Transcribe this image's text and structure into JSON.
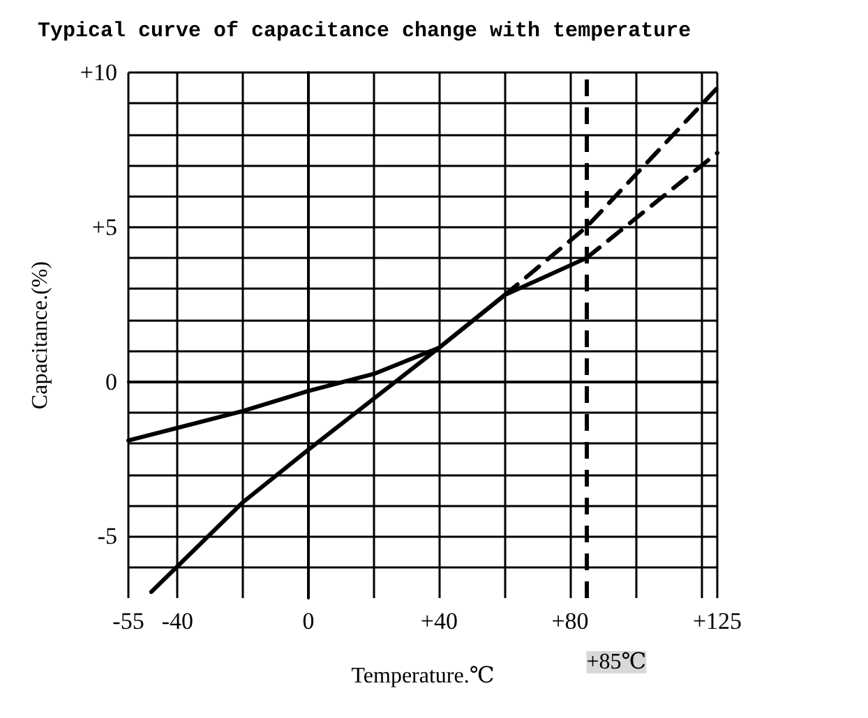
{
  "chart_data": {
    "type": "line",
    "title": "Typical curve of capacitance change with temperature",
    "xlabel": "Temperature.℃",
    "ylabel": "Capacitance.(%)",
    "xlim": [
      -55,
      125
    ],
    "xticks": [
      -55,
      -40,
      {
        "value": -20,
        "label": null
      },
      0,
      {
        "value": 20,
        "label": null
      },
      {
        "value": 40,
        "label": "+40"
      },
      {
        "value": 60,
        "label": null
      },
      {
        "value": 80,
        "label": "+80"
      },
      {
        "value": 100,
        "label": null
      },
      {
        "value": 120,
        "label": null
      },
      {
        "value": 125,
        "label": "+125"
      }
    ],
    "ylim": [
      -7,
      10
    ],
    "yticks": [
      {
        "value": -6,
        "label": null
      },
      -5,
      {
        "value": -4,
        "label": null
      },
      {
        "value": -3,
        "label": null
      },
      {
        "value": -2,
        "label": null
      },
      {
        "value": -1,
        "label": null
      },
      0,
      {
        "value": 1,
        "label": null
      },
      {
        "value": 2,
        "label": null
      },
      {
        "value": 3,
        "label": null
      },
      {
        "value": 4,
        "label": null
      },
      {
        "value": 5,
        "label": "+5"
      },
      {
        "value": 6,
        "label": null
      },
      {
        "value": 7,
        "label": null
      },
      {
        "value": 8,
        "label": null
      },
      {
        "value": 9,
        "label": null
      },
      {
        "value": 10,
        "label": "+10"
      }
    ],
    "grid": true,
    "marker": "none",
    "series": [
      {
        "color": "#000000",
        "line_style": "solid",
        "x": [
          -55,
          -20,
          0,
          20,
          40,
          60,
          85
        ],
        "values": [
          -1.9,
          -0.95,
          -0.3,
          0.25,
          1.1,
          2.8,
          4.0
        ]
      },
      {
        "color": "#000000",
        "line_style": "dashed",
        "x": [
          85,
          125
        ],
        "values": [
          4.0,
          7.4
        ]
      },
      {
        "color": "#000000",
        "line_style": "solid",
        "x": [
          -48,
          -20,
          0,
          40,
          60
        ],
        "values": [
          -6.8,
          -3.9,
          -2.2,
          1.1,
          2.8
        ]
      },
      {
        "color": "#000000",
        "line_style": "dashed",
        "x": [
          60,
          85,
          125
        ],
        "values": [
          2.8,
          5.0,
          9.5
        ]
      }
    ],
    "ref_lines": [
      {
        "axis": "x",
        "value": 85,
        "label": "+85℃",
        "line_style": "dashed",
        "color": "#000000"
      }
    ]
  }
}
